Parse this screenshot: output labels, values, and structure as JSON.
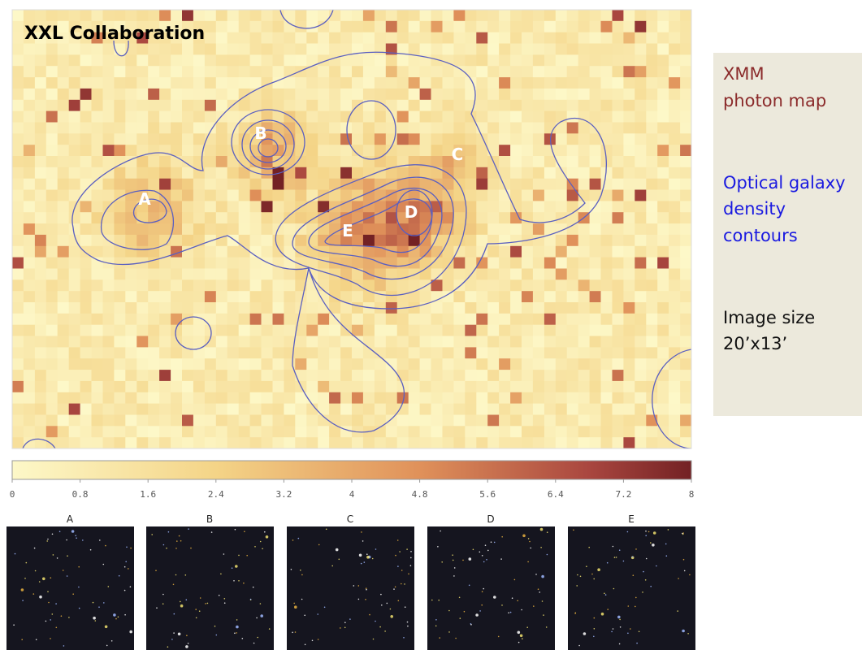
{
  "map": {
    "title": "XXL Collaboration",
    "labels": [
      "A",
      "B",
      "C",
      "D",
      "E"
    ]
  },
  "colorbar": {
    "lim": [
      0,
      8
    ],
    "ticks": [
      0,
      0.8,
      1.6,
      2.4,
      3.2,
      4,
      4.8,
      5.6,
      6.4,
      7.2,
      8
    ]
  },
  "thumbnails": [
    "A",
    "B",
    "C",
    "D",
    "E"
  ],
  "legend": {
    "xmm": [
      "XMM",
      "photon map"
    ],
    "optical": [
      "Optical galaxy",
      "density",
      "contours"
    ],
    "size": [
      "Image size",
      "20’x13’"
    ]
  }
}
